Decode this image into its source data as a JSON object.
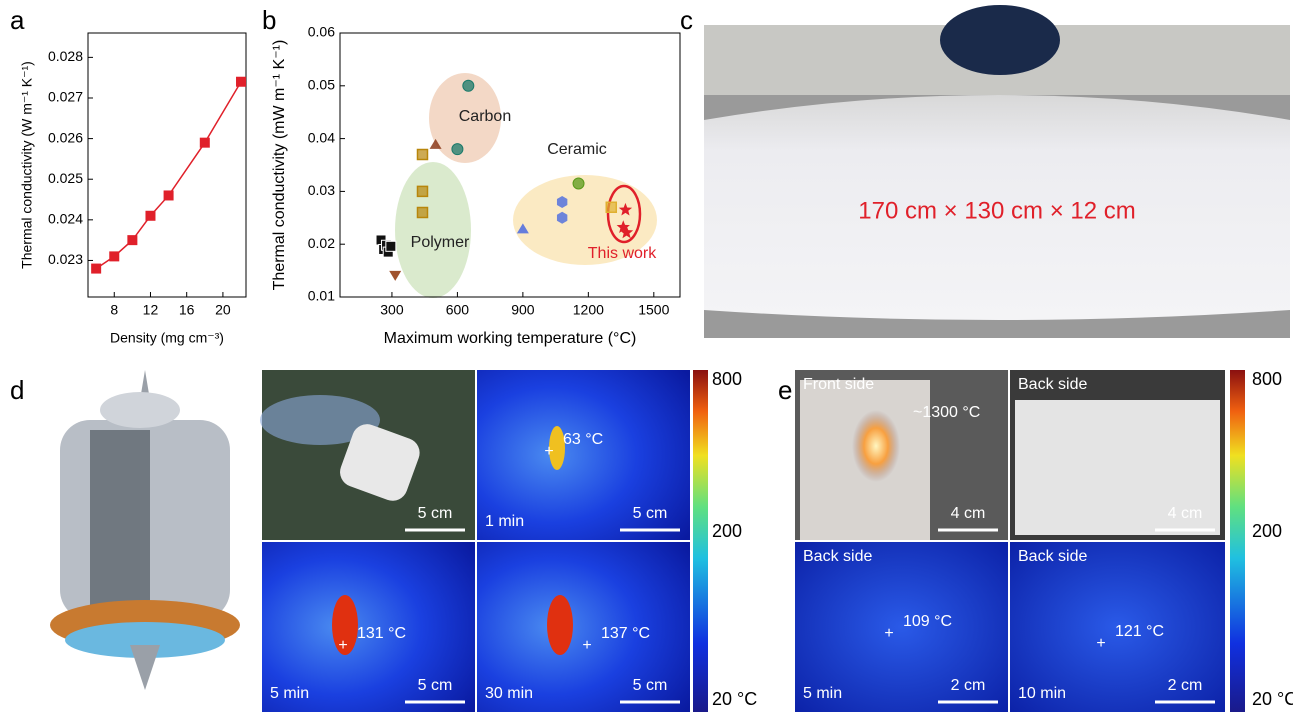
{
  "panel_labels": [
    "a",
    "b",
    "c",
    "d",
    "e"
  ],
  "chart_data": [
    {
      "type": "line",
      "xlabel": "Density (mg cm⁻³)",
      "ylabel": "Thermal conductivity (W m⁻¹ K⁻¹)",
      "color": "#e0202a",
      "x": [
        6,
        8,
        10,
        12,
        14,
        18,
        22
      ],
      "values": [
        0.0228,
        0.0231,
        0.0235,
        0.0241,
        0.0246,
        0.0259,
        0.0274
      ],
      "xlim": [
        5.1,
        22.55
      ],
      "xticks": [
        8,
        12,
        16,
        20
      ],
      "ylim": [
        0.0221,
        0.0286
      ],
      "yticks": [
        0.023,
        0.024,
        0.025,
        0.026,
        0.027,
        0.028
      ]
    },
    {
      "type": "scatter",
      "xlabel": "Maximum working temperature (°C)",
      "ylabel": "Thermal conductivity (mW m⁻¹ K⁻¹)",
      "annotations": [
        "Carbon",
        "Ceramic",
        "Polymer",
        "This work"
      ],
      "xlim": [
        62,
        1620
      ],
      "xticks": [
        300,
        600,
        900,
        1200,
        1500
      ],
      "ylim": [
        0.01,
        0.06
      ],
      "yticks": [
        0.01,
        0.02,
        0.03,
        0.04,
        0.05,
        0.06
      ],
      "series": [
        {
          "marker": "square",
          "color": "#111111",
          "x": [
            250,
            262,
            275,
            283,
            295
          ],
          "y": [
            0.0208,
            0.019,
            0.0198,
            0.0185,
            0.0196
          ]
        },
        {
          "marker": "halfsquare",
          "color": "#b8860b",
          "x": [
            440,
            440,
            440
          ],
          "y": [
            0.037,
            0.03,
            0.026
          ]
        },
        {
          "marker": "tri-down",
          "color": "#a0522d",
          "x": [
            315
          ],
          "y": [
            0.014
          ]
        },
        {
          "marker": "tri-up",
          "color": "#8b3a1a",
          "x": [
            500
          ],
          "y": [
            0.039
          ]
        },
        {
          "marker": "halfcircle",
          "color": "#1a7a6a",
          "x": [
            650,
            600
          ],
          "y": [
            0.05,
            0.038
          ]
        },
        {
          "marker": "halfcircle",
          "color": "#5a9a1a",
          "x": [
            1155
          ],
          "y": [
            0.0315
          ]
        },
        {
          "marker": "hexagon",
          "color": "#4a6ae0",
          "x": [
            1080,
            1080
          ],
          "y": [
            0.028,
            0.025
          ]
        },
        {
          "marker": "tri-up",
          "color": "#4a6ae0",
          "x": [
            900
          ],
          "y": [
            0.023
          ]
        },
        {
          "marker": "halfsquare",
          "color": "#e0b030",
          "x": [
            1305
          ],
          "y": [
            0.027
          ]
        },
        {
          "marker": "star",
          "color": "#e0202a",
          "x": [
            1370,
            1360,
            1375
          ],
          "y": [
            0.0265,
            0.0232,
            0.0222
          ]
        }
      ]
    }
  ],
  "panel_c": {
    "caption": "170 cm × 130 cm × 12 cm"
  },
  "panel_d": {
    "tiles": [
      {
        "scale": "5 cm"
      },
      {
        "time": "1 min",
        "temp": "63 °C",
        "scale": "5 cm"
      },
      {
        "time": "5 min",
        "temp": "131 °C",
        "scale": "5 cm"
      },
      {
        "time": "30 min",
        "temp": "137 °C",
        "scale": "5 cm"
      }
    ],
    "colorbar": [
      "800",
      "200",
      "20 °C"
    ]
  },
  "panel_e": {
    "tiles": [
      {
        "side": "Front side",
        "temp": "~1300 °C",
        "scale": "4 cm"
      },
      {
        "side": "Back side",
        "scale": "4 cm"
      },
      {
        "side": "Back side",
        "temp": "109 °C",
        "time": "5 min",
        "scale": "2 cm"
      },
      {
        "side": "Back side",
        "temp": "121 °C",
        "time": "10 min",
        "scale": "2 cm"
      }
    ],
    "colorbar": [
      "800",
      "200",
      "20 °C"
    ]
  }
}
